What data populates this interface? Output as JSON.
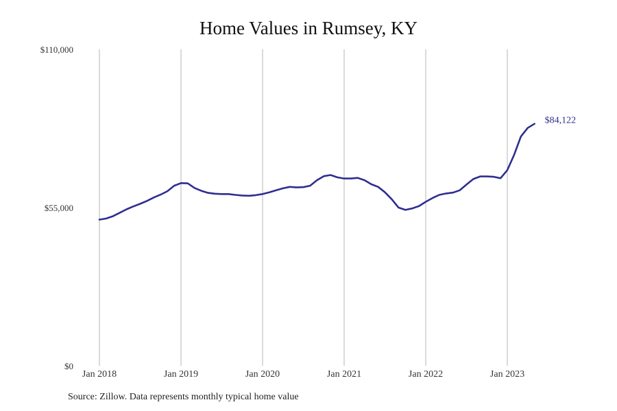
{
  "chart_data": {
    "type": "line",
    "title": "Home Values in Rumsey, KY",
    "source": "Source: Zillow. Data represents monthly typical home value",
    "ylim": [
      0,
      110000
    ],
    "y_ticks": [
      "$0",
      "$55,000",
      "$110,000"
    ],
    "y_tick_values": [
      0,
      55000,
      110000
    ],
    "x_ticks": [
      "Jan 2018",
      "Jan 2019",
      "Jan 2020",
      "Jan 2021",
      "Jan 2022",
      "Jan 2023"
    ],
    "grid": "vertical",
    "line_color": "#2e2e8f",
    "end_label": "$84,122",
    "series": [
      {
        "x": [
          "2018-01",
          "2018-02",
          "2018-03",
          "2018-04",
          "2018-05",
          "2018-06",
          "2018-07",
          "2018-08",
          "2018-09",
          "2018-10",
          "2018-11",
          "2018-12",
          "2019-01",
          "2019-02",
          "2019-03",
          "2019-04",
          "2019-05",
          "2019-06",
          "2019-07",
          "2019-08",
          "2019-09",
          "2019-10",
          "2019-11",
          "2019-12",
          "2020-01",
          "2020-02",
          "2020-03",
          "2020-04",
          "2020-05",
          "2020-06",
          "2020-07",
          "2020-08",
          "2020-09",
          "2020-10",
          "2020-11",
          "2020-12",
          "2021-01",
          "2021-02",
          "2021-03",
          "2021-04",
          "2021-05",
          "2021-06",
          "2021-07",
          "2021-08",
          "2021-09",
          "2021-10",
          "2021-11",
          "2021-12",
          "2022-01",
          "2022-02",
          "2022-03",
          "2022-04",
          "2022-05",
          "2022-06",
          "2022-07",
          "2022-08",
          "2022-09",
          "2022-10",
          "2022-11",
          "2022-12",
          "2023-01",
          "2023-02",
          "2023-03",
          "2023-04",
          "2023-05"
        ],
        "values": [
          50800,
          51200,
          52000,
          53200,
          54400,
          55400,
          56300,
          57300,
          58500,
          59500,
          60700,
          62600,
          63500,
          63400,
          61800,
          60800,
          60100,
          59800,
          59700,
          59700,
          59400,
          59200,
          59100,
          59300,
          59700,
          60300,
          61000,
          61700,
          62200,
          62000,
          62100,
          62600,
          64500,
          65900,
          66300,
          65500,
          65100,
          65100,
          65300,
          64500,
          63100,
          62200,
          60300,
          57900,
          55000,
          54200,
          54700,
          55500,
          57000,
          58300,
          59400,
          59900,
          60200,
          61000,
          63000,
          64900,
          65800,
          65800,
          65700,
          65200,
          68000,
          73300,
          79700,
          82700,
          84122
        ]
      }
    ]
  }
}
